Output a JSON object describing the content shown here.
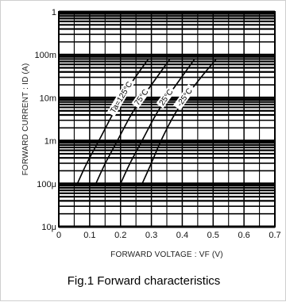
{
  "chart_data": {
    "type": "line",
    "title": "",
    "caption": "Fig.1  Forward characteristics",
    "xlabel": "FORWARD VOLTAGE : VF (V)",
    "ylabel": "FORWARD CURRENT : ID (A)",
    "xlim": [
      0,
      0.7
    ],
    "ylim": [
      1e-05,
      1
    ],
    "yscale": "log",
    "grid": true,
    "x_ticks": [
      0,
      0.1,
      0.2,
      0.3,
      0.4,
      0.5,
      0.6,
      0.7
    ],
    "x_tick_labels": [
      "0",
      "0.1",
      "0.2",
      "0.3",
      "0.4",
      "0.5",
      "0.6",
      "0.7"
    ],
    "y_ticks": [
      1e-05,
      0.0001,
      0.001,
      0.01,
      0.1,
      1
    ],
    "y_tick_labels": [
      "10μ",
      "100μ",
      "1m",
      "10m",
      "100m",
      "1"
    ],
    "series": [
      {
        "name": "Ta=125°C",
        "x": [
          0.06,
          0.09,
          0.13,
          0.18,
          0.23,
          0.29
        ],
        "y": [
          0.0001,
          0.0003,
          0.001,
          0.005,
          0.02,
          0.08
        ]
      },
      {
        "name": "75°C",
        "x": [
          0.12,
          0.15,
          0.19,
          0.24,
          0.3,
          0.36
        ],
        "y": [
          0.0001,
          0.0003,
          0.001,
          0.005,
          0.02,
          0.08
        ]
      },
      {
        "name": "25°C",
        "x": [
          0.2,
          0.23,
          0.27,
          0.32,
          0.38,
          0.44
        ],
        "y": [
          0.0001,
          0.0003,
          0.001,
          0.005,
          0.02,
          0.08
        ]
      },
      {
        "name": "-25°C",
        "x": [
          0.27,
          0.3,
          0.33,
          0.38,
          0.44,
          0.51
        ],
        "y": [
          0.0001,
          0.0003,
          0.001,
          0.005,
          0.02,
          0.08
        ]
      }
    ]
  }
}
